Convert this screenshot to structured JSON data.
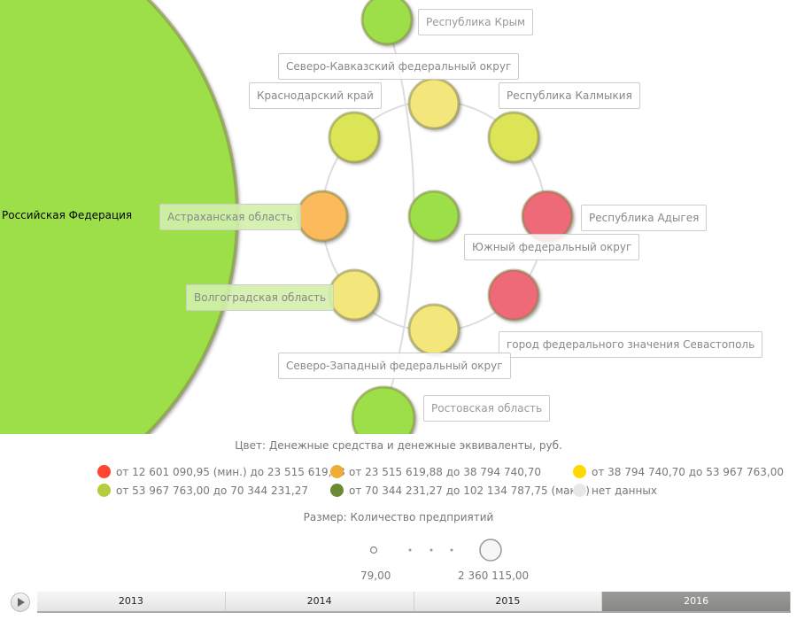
{
  "chart_data": {
    "type": "bubble",
    "nodes": [
      {
        "name": "Российская Федерация",
        "color": "#9ddf4a"
      },
      {
        "name": "Республика Крым",
        "color": "#9ddf4a"
      },
      {
        "name": "Северо-Кавказский федеральный округ",
        "color": "#f3e67a"
      },
      {
        "name": "Краснодарский край",
        "color": "#dbe555"
      },
      {
        "name": "Республика Калмыкия",
        "color": "#dbe555"
      },
      {
        "name": "Астраханская область",
        "color": "#fbba5c"
      },
      {
        "name": "Южный федеральный округ",
        "color": "#9ddf4a"
      },
      {
        "name": "Республика Адыгея",
        "color": "#ee6b78"
      },
      {
        "name": "Волгоградская область",
        "color": "#f3e67a"
      },
      {
        "name": "город федерального значения Севастополь",
        "color": "#ee6b78"
      },
      {
        "name": "Северо-Западный федеральный округ",
        "color": "#f3e67a"
      },
      {
        "name": "Ростовская область",
        "color": "#9ddf4a"
      }
    ],
    "color_legend": {
      "title": "Цвет: Денежные средства и денежные эквиваленты, руб.",
      "items": [
        {
          "label": "от 12 601 090,95 (мин.) до 23 515 619,88",
          "color": "#ff4530"
        },
        {
          "label": "от 23 515 619,88 до 38 794 740,70",
          "color": "#eeae35"
        },
        {
          "label": "от 38 794 740,70 до 53 967 763,00",
          "color": "#ffd800"
        },
        {
          "label": "от 53 967 763,00 до 70 344 231,27",
          "color": "#b6cc3c"
        },
        {
          "label": "от 70 344 231,27 до 102 134 787,75 (макс.)",
          "color": "#6b8a33"
        },
        {
          "label": "нет данных",
          "color": "#e8e8e8"
        }
      ]
    },
    "size_legend": {
      "title": "Размер: Количество предприятий",
      "min": "79,00",
      "max": "2 360 115,00"
    }
  },
  "timeline": {
    "years": [
      "2013",
      "2014",
      "2015",
      "2016"
    ],
    "active": "2016"
  }
}
